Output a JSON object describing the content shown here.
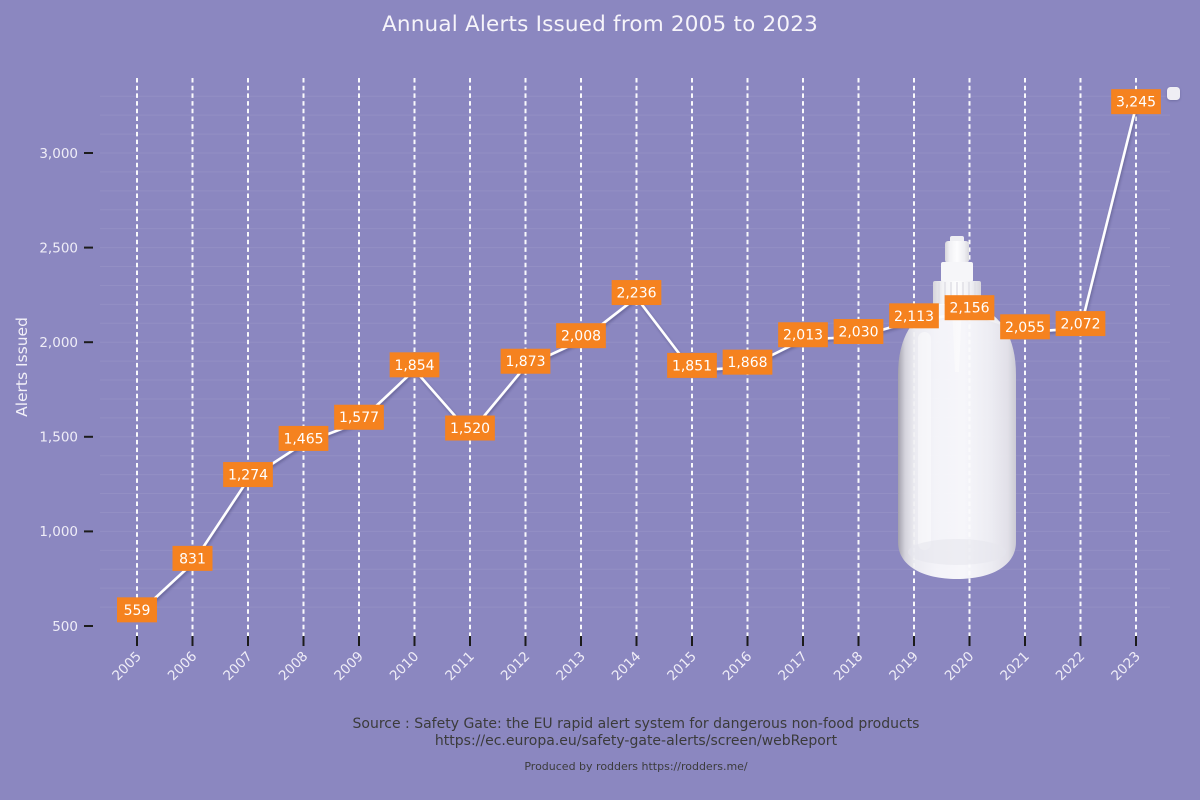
{
  "title": "Annual Alerts Issued from 2005 to 2023",
  "y_axis_title": "Alerts Issued",
  "legend": {
    "marker": "white-rounded-square",
    "label": ""
  },
  "footer": {
    "source_line1": "Source : Safety Gate: the EU rapid alert system for dangerous non-food products",
    "source_line2": "https://ec.europa.eu/safety-gate-alerts/screen/webReport",
    "produced_by": "Produced by rodders https://rodders.me/"
  },
  "overlay_image": "transparent-spray-bottle",
  "colors": {
    "background": "#8b87c0",
    "line": "#ffffff",
    "gridline": "#ffffff",
    "label_bg": "#f5821f",
    "label_text": "#ffffff",
    "axis_text": "#efedf7",
    "tick_mark": "#1c1c1c",
    "footer_text": "#3b3b3b"
  },
  "chart_data": {
    "type": "line",
    "title": "Annual Alerts Issued from 2005 to 2023",
    "xlabel": "",
    "ylabel": "Alerts Issued",
    "x": [
      2005,
      2006,
      2007,
      2008,
      2009,
      2010,
      2011,
      2012,
      2013,
      2014,
      2015,
      2016,
      2017,
      2018,
      2019,
      2020,
      2021,
      2022,
      2023
    ],
    "series": [
      {
        "name": "Alerts Issued",
        "values": [
          559,
          831,
          1274,
          1465,
          1577,
          1854,
          1520,
          1873,
          2008,
          2236,
          1851,
          1868,
          2013,
          2030,
          2113,
          2156,
          2055,
          2072,
          3245
        ]
      }
    ],
    "yticks": [
      500,
      1000,
      1500,
      2000,
      2500,
      3000
    ],
    "ylim": [
      400,
      3400
    ],
    "grid": "vertical-dashed-major, horizontal-faint-minor",
    "data_labels": true,
    "label_format": "thousands-comma",
    "legend_position": "top-right"
  }
}
